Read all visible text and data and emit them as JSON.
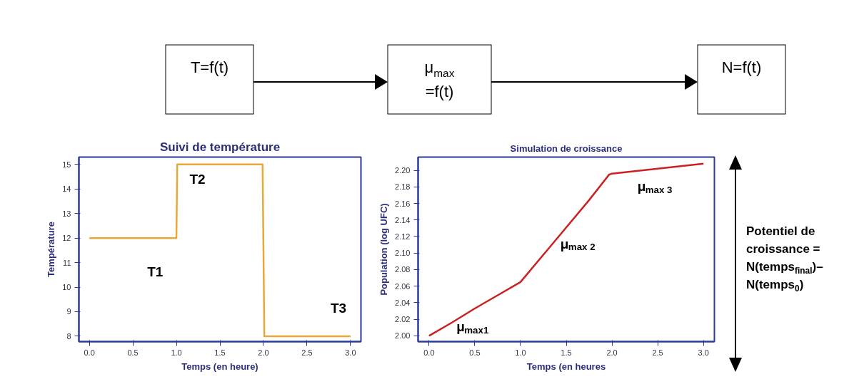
{
  "chart_data": [
    {
      "type": "other",
      "annotations": [
        "T=f(t)",
        "μ$_{max}$ =f(t)",
        "N=f(t)"
      ]
    },
    {
      "type": "line",
      "title": "Suivi de température",
      "xlabel": "Temps (en heure)",
      "ylabel": "Température",
      "x": [
        0,
        1,
        1.01,
        1.99,
        2.01,
        3
      ],
      "series": [
        {
          "color": "#e8a838",
          "values": [
            12,
            12,
            15,
            15,
            8,
            8
          ]
        }
      ],
      "xlim": [
        -0.12,
        3.12
      ],
      "ylim": [
        7.78,
        15.3
      ],
      "xticks": [
        {
          "value": 0,
          "label": "0.0"
        },
        0.5,
        {
          "value": 1,
          "label": "1.0"
        },
        1.5,
        {
          "value": 2,
          "label": "2.0"
        },
        2.5,
        {
          "value": 3,
          "label": "3.0"
        }
      ],
      "yticks": [
        8,
        9,
        10,
        11,
        12,
        13,
        14,
        15
      ],
      "annotations": [
        "T1",
        "T2",
        "T3"
      ]
    },
    {
      "type": "line",
      "title": "Simulation de croissance",
      "xlabel": "Temps (en heures",
      "ylabel": "Population (log UFC)",
      "x": [
        0,
        0.25,
        0.5,
        0.75,
        1.0,
        1.25,
        1.5,
        1.75,
        1.97,
        2.0,
        2.5,
        3.0
      ],
      "series": [
        {
          "color": "#cc2020",
          "values": [
            2.0,
            2.016,
            2.033,
            2.049,
            2.065,
            2.098,
            2.131,
            2.164,
            2.195,
            2.196,
            2.202,
            2.208
          ]
        }
      ],
      "xlim": [
        -0.12,
        3.12
      ],
      "ylim": [
        1.993,
        2.216
      ],
      "xticks": [
        {
          "value": 0,
          "label": "0.0"
        },
        0.5,
        {
          "value": 1,
          "label": "1.0"
        },
        1.5,
        {
          "value": 2,
          "label": "2.0"
        },
        2.5,
        {
          "value": 3,
          "label": "3.0"
        }
      ],
      "yticks": [
        {
          "value": 2.0,
          "label": "2.00"
        },
        2.02,
        2.04,
        2.06,
        2.08,
        {
          "value": 2.1,
          "label": "2.10"
        },
        2.12,
        2.14,
        2.16,
        2.18,
        {
          "value": 2.2,
          "label": "2.20"
        }
      ],
      "annotations": [
        "μ$_{max1}$",
        "μ$_{max 2}$",
        "μ$_{max 3}$"
      ]
    },
    {
      "type": "other",
      "annotations": [
        "Potentiel de croissance = N(temps$_{final}$)– N(temps$_{0}$)"
      ]
    }
  ]
}
